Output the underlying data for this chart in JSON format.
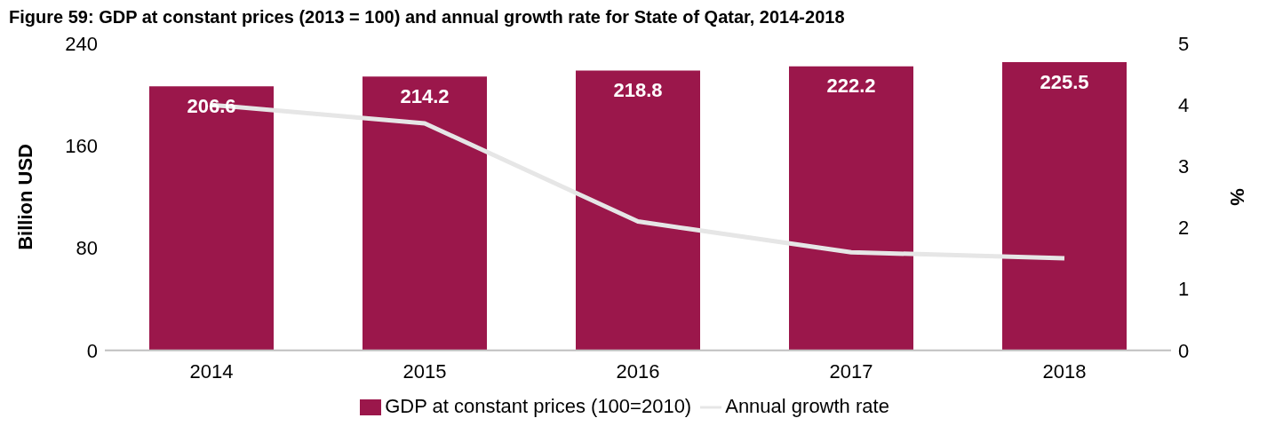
{
  "chart_data": {
    "type": "bar",
    "title": "Figure 59: GDP at constant prices (2013 = 100) and annual growth rate for State of Qatar, 2014-2018",
    "categories": [
      "2014",
      "2015",
      "2016",
      "2017",
      "2018"
    ],
    "series": [
      {
        "name": "GDP at constant prices (100=2010)",
        "color": "#9b174b",
        "values": [
          206.6,
          214.2,
          218.8,
          222.2,
          225.5
        ],
        "value_labels": [
          "206.6",
          "214.2",
          "218.8",
          "222.2",
          "225.5"
        ]
      },
      {
        "name": "Annual growth rate",
        "type": "line",
        "axis": "y2",
        "color": "#e6e6e6",
        "values": [
          4.0,
          3.7,
          2.1,
          1.6,
          1.5
        ],
        "marker": "none"
      }
    ],
    "ylabel": "Billion USD",
    "y2label": "%",
    "ylim": [
      0,
      240
    ],
    "yticks": [
      0,
      80,
      160,
      240
    ],
    "y2lim": [
      0,
      5
    ],
    "y2ticks": [
      0,
      1,
      2,
      3,
      4,
      5
    ],
    "grid": false,
    "legend": "bottom"
  }
}
